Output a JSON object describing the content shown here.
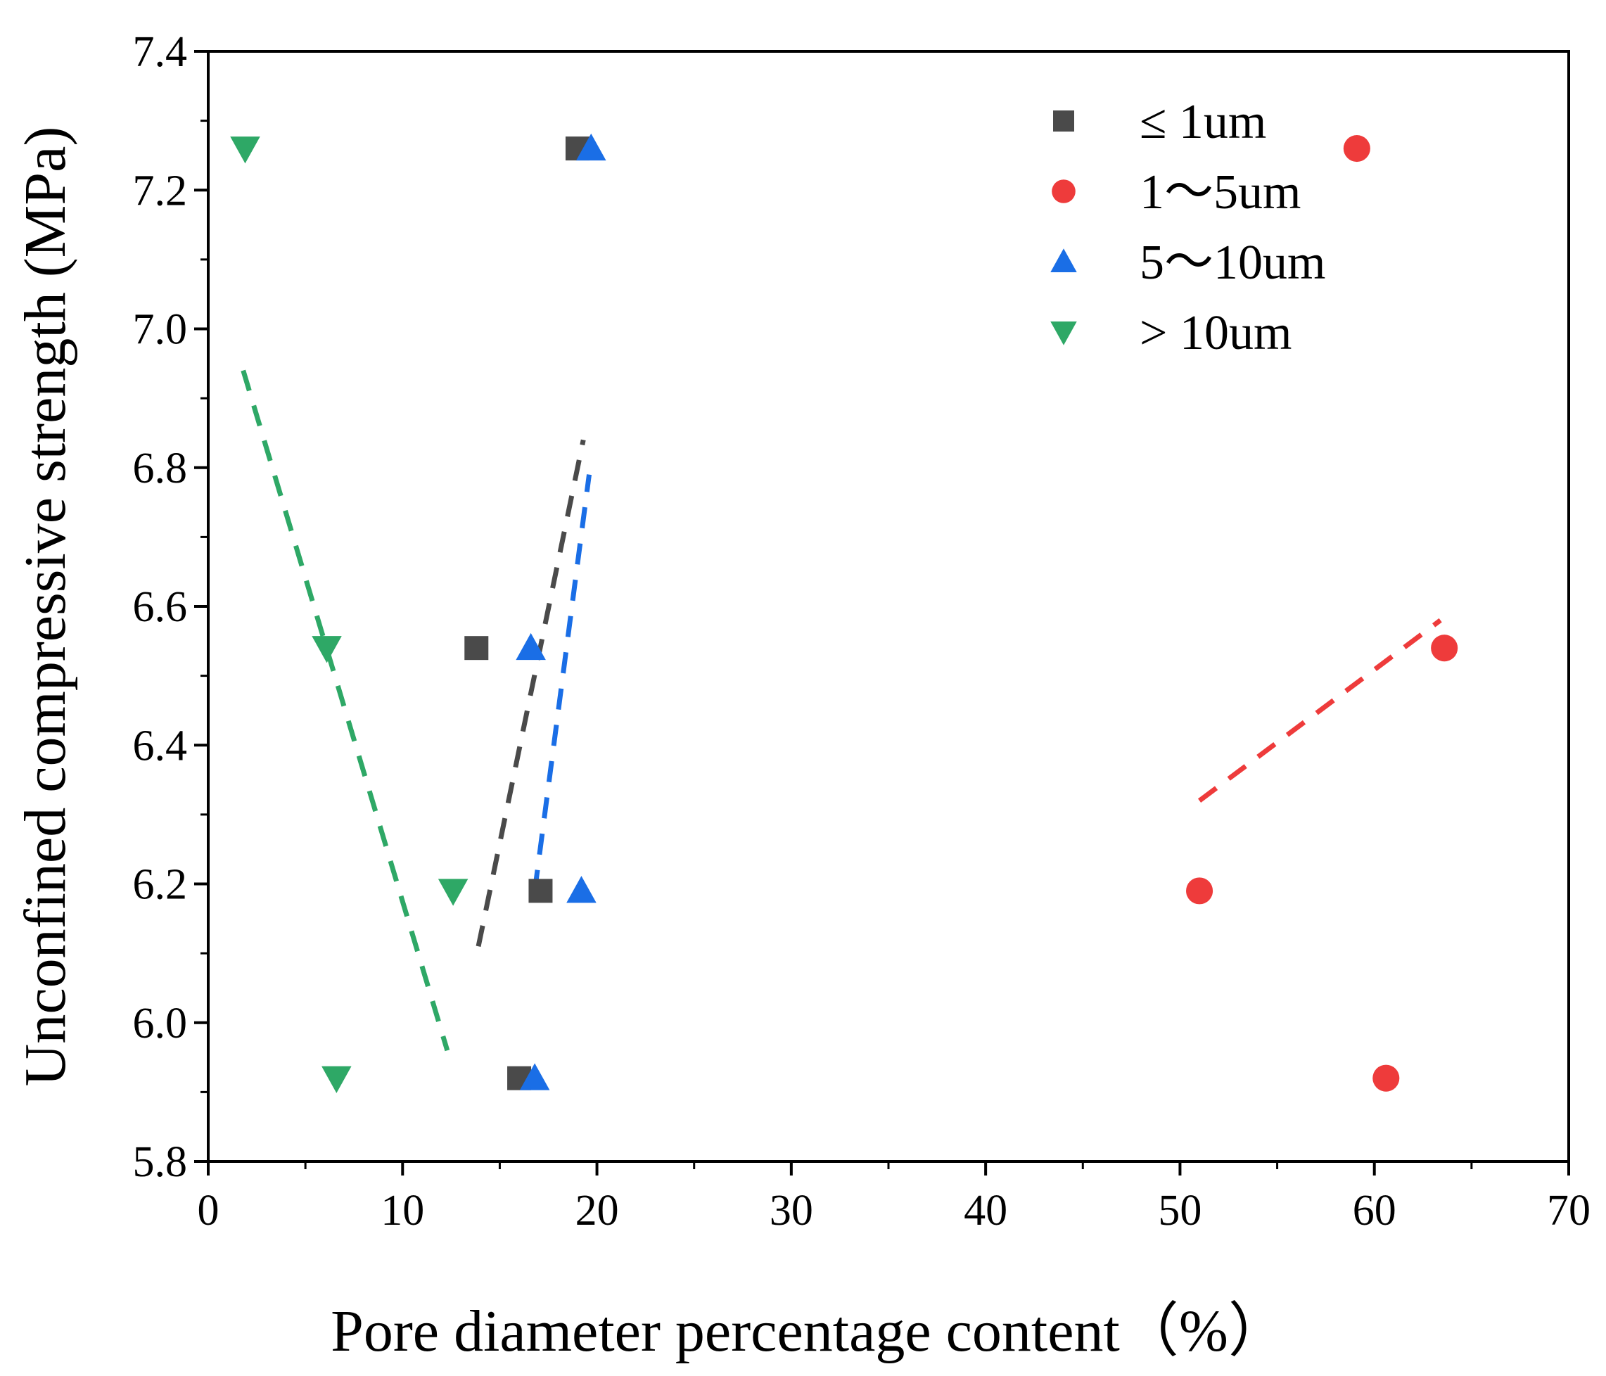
{
  "chart_data": {
    "type": "scatter",
    "xlabel": "Pore diameter percentage content（%）",
    "ylabel": "Unconfined compressive strength (MPa)",
    "xlim": [
      0,
      70
    ],
    "ylim": [
      5.8,
      7.4
    ],
    "xticks": [
      0,
      10,
      20,
      30,
      40,
      50,
      60,
      70
    ],
    "xtick_labels": [
      "0",
      "10",
      "20",
      "30",
      "40",
      "50",
      "60",
      "70"
    ],
    "yticks": [
      5.8,
      6.0,
      6.2,
      6.4,
      6.6,
      6.8,
      7.0,
      7.2,
      7.4
    ],
    "ytick_labels": [
      "5.8",
      "6.0",
      "6.2",
      "6.4",
      "6.6",
      "6.8",
      "7.0",
      "7.2",
      "7.4"
    ],
    "legend_position": "top-right",
    "series": [
      {
        "name": "≤ 1um",
        "marker": "square",
        "color": "#4a4a4a",
        "points": [
          [
            19.0,
            7.26
          ],
          [
            13.8,
            6.54
          ],
          [
            17.1,
            6.19
          ],
          [
            16.0,
            5.92
          ]
        ],
        "trend": [
          [
            13.9,
            6.11
          ],
          [
            19.3,
            6.84
          ]
        ]
      },
      {
        "name": "1～5um",
        "marker": "circle",
        "color": "#ee3b3b",
        "points": [
          [
            59.1,
            7.26
          ],
          [
            63.6,
            6.54
          ],
          [
            51.0,
            6.19
          ],
          [
            60.6,
            5.92
          ]
        ],
        "trend": [
          [
            51.0,
            6.32
          ],
          [
            63.4,
            6.58
          ]
        ]
      },
      {
        "name": "5～10um",
        "marker": "triangle-up",
        "color": "#1a6ee6",
        "points": [
          [
            19.7,
            7.26
          ],
          [
            16.6,
            6.54
          ],
          [
            19.2,
            6.19
          ],
          [
            16.8,
            5.92
          ]
        ],
        "trend": [
          [
            16.8,
            6.19
          ],
          [
            19.6,
            6.79
          ]
        ]
      },
      {
        "name": "> 10um",
        "marker": "triangle-down",
        "color": "#2ea866",
        "points": [
          [
            1.9,
            7.26
          ],
          [
            6.1,
            6.54
          ],
          [
            12.6,
            6.19
          ],
          [
            6.6,
            5.92
          ]
        ],
        "trend": [
          [
            1.8,
            6.94
          ],
          [
            12.3,
            5.96
          ]
        ]
      }
    ]
  }
}
